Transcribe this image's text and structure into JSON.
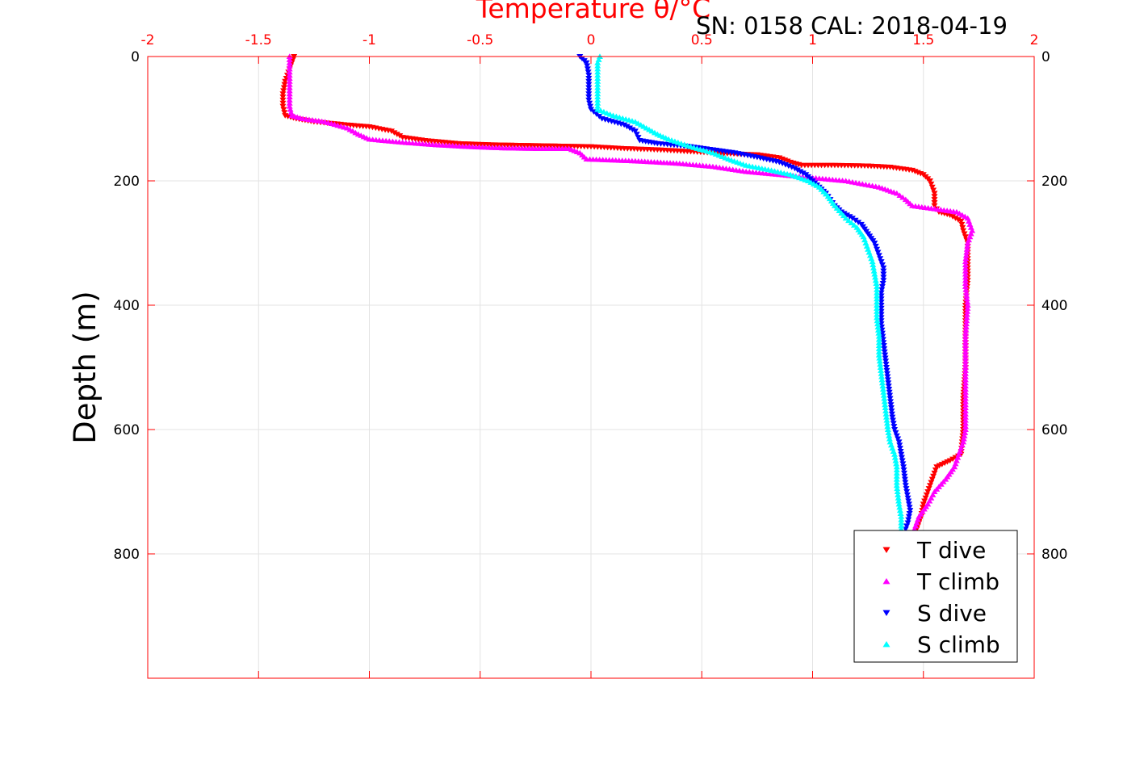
{
  "chart_data": {
    "type": "scatter",
    "title": "Temperature θ/°C",
    "subtitle": "SN: 0158  CAL: 2018-04-19",
    "xlabel": "Temperature θ/°C",
    "ylabel": "Depth (m)",
    "xlim": [
      -2,
      2
    ],
    "ylim": [
      1000,
      0
    ],
    "x_ticks": [
      "-2",
      "-1.5",
      "-1",
      "-0.5",
      "0",
      "0.5",
      "1",
      "1.5",
      "2"
    ],
    "y_ticks": [
      "0",
      "200",
      "400",
      "600",
      "800"
    ],
    "grid": true,
    "legend_position": "bottom-right",
    "series": [
      {
        "name": "T dive",
        "color": "#ff0000",
        "marker": "triangle-down",
        "points": [
          [
            -1.34,
            0
          ],
          [
            -1.36,
            20
          ],
          [
            -1.38,
            40
          ],
          [
            -1.39,
            60
          ],
          [
            -1.39,
            80
          ],
          [
            -1.38,
            95
          ],
          [
            -1.33,
            100
          ],
          [
            -1.25,
            105
          ],
          [
            -1.1,
            110
          ],
          [
            -1.0,
            113
          ],
          [
            -0.9,
            120
          ],
          [
            -0.85,
            130
          ],
          [
            -0.75,
            135
          ],
          [
            -0.6,
            140
          ],
          [
            -0.45,
            142
          ],
          [
            -0.3,
            143
          ],
          [
            -0.15,
            144
          ],
          [
            0.0,
            145
          ],
          [
            0.15,
            148
          ],
          [
            0.3,
            150
          ],
          [
            0.45,
            153
          ],
          [
            0.6,
            156
          ],
          [
            0.75,
            158
          ],
          [
            0.85,
            163
          ],
          [
            0.9,
            170
          ],
          [
            0.95,
            175
          ],
          [
            1.1,
            175
          ],
          [
            1.25,
            176
          ],
          [
            1.35,
            178
          ],
          [
            1.45,
            183
          ],
          [
            1.5,
            190
          ],
          [
            1.53,
            200
          ],
          [
            1.55,
            220
          ],
          [
            1.55,
            240
          ],
          [
            1.57,
            250
          ],
          [
            1.62,
            255
          ],
          [
            1.67,
            265
          ],
          [
            1.68,
            280
          ],
          [
            1.7,
            300
          ],
          [
            1.7,
            330
          ],
          [
            1.7,
            360
          ],
          [
            1.69,
            400
          ],
          [
            1.69,
            450
          ],
          [
            1.69,
            500
          ],
          [
            1.68,
            550
          ],
          [
            1.68,
            600
          ],
          [
            1.67,
            640
          ],
          [
            1.62,
            650
          ],
          [
            1.56,
            660
          ],
          [
            1.54,
            680
          ],
          [
            1.52,
            700
          ],
          [
            1.5,
            720
          ],
          [
            1.49,
            740
          ],
          [
            1.47,
            760
          ]
        ]
      },
      {
        "name": "T climb",
        "color": "#ff00ff",
        "marker": "triangle-up",
        "points": [
          [
            -1.36,
            0
          ],
          [
            -1.36,
            20
          ],
          [
            -1.36,
            40
          ],
          [
            -1.36,
            60
          ],
          [
            -1.36,
            80
          ],
          [
            -1.35,
            95
          ],
          [
            -1.3,
            100
          ],
          [
            -1.2,
            105
          ],
          [
            -1.1,
            115
          ],
          [
            -1.05,
            125
          ],
          [
            -1.0,
            133
          ],
          [
            -0.85,
            138
          ],
          [
            -0.7,
            142
          ],
          [
            -0.55,
            145
          ],
          [
            -0.4,
            147
          ],
          [
            -0.25,
            148
          ],
          [
            -0.1,
            148
          ],
          [
            -0.05,
            155
          ],
          [
            -0.02,
            165
          ],
          [
            0.2,
            168
          ],
          [
            0.4,
            172
          ],
          [
            0.55,
            177
          ],
          [
            0.7,
            185
          ],
          [
            0.85,
            190
          ],
          [
            1.0,
            195
          ],
          [
            1.15,
            200
          ],
          [
            1.3,
            210
          ],
          [
            1.38,
            220
          ],
          [
            1.42,
            230
          ],
          [
            1.45,
            240
          ],
          [
            1.55,
            245
          ],
          [
            1.65,
            250
          ],
          [
            1.7,
            260
          ],
          [
            1.72,
            280
          ],
          [
            1.7,
            300
          ],
          [
            1.69,
            330
          ],
          [
            1.69,
            370
          ],
          [
            1.7,
            400
          ],
          [
            1.69,
            450
          ],
          [
            1.69,
            500
          ],
          [
            1.69,
            550
          ],
          [
            1.69,
            600
          ],
          [
            1.68,
            620
          ],
          [
            1.66,
            640
          ],
          [
            1.64,
            660
          ],
          [
            1.6,
            680
          ],
          [
            1.55,
            700
          ],
          [
            1.52,
            720
          ],
          [
            1.48,
            740
          ],
          [
            1.46,
            760
          ]
        ]
      },
      {
        "name": "S dive",
        "color": "#0000ff",
        "marker": "triangle-down",
        "points": [
          [
            -0.05,
            0
          ],
          [
            -0.02,
            10
          ],
          [
            -0.01,
            30
          ],
          [
            -0.01,
            50
          ],
          [
            -0.01,
            70
          ],
          [
            0.0,
            85
          ],
          [
            0.05,
            100
          ],
          [
            0.15,
            110
          ],
          [
            0.2,
            120
          ],
          [
            0.22,
            135
          ],
          [
            0.3,
            140
          ],
          [
            0.45,
            145
          ],
          [
            0.55,
            150
          ],
          [
            0.65,
            155
          ],
          [
            0.75,
            162
          ],
          [
            0.85,
            170
          ],
          [
            0.92,
            180
          ],
          [
            0.97,
            190
          ],
          [
            1.0,
            200
          ],
          [
            1.03,
            210
          ],
          [
            1.06,
            220
          ],
          [
            1.08,
            230
          ],
          [
            1.1,
            240
          ],
          [
            1.13,
            250
          ],
          [
            1.18,
            260
          ],
          [
            1.22,
            270
          ],
          [
            1.25,
            285
          ],
          [
            1.28,
            300
          ],
          [
            1.3,
            320
          ],
          [
            1.32,
            340
          ],
          [
            1.32,
            360
          ],
          [
            1.31,
            380
          ],
          [
            1.31,
            400
          ],
          [
            1.31,
            430
          ],
          [
            1.32,
            460
          ],
          [
            1.33,
            490
          ],
          [
            1.34,
            520
          ],
          [
            1.35,
            550
          ],
          [
            1.36,
            580
          ],
          [
            1.37,
            600
          ],
          [
            1.39,
            620
          ],
          [
            1.4,
            640
          ],
          [
            1.41,
            660
          ],
          [
            1.42,
            690
          ],
          [
            1.43,
            710
          ],
          [
            1.44,
            730
          ],
          [
            1.43,
            750
          ],
          [
            1.42,
            760
          ]
        ]
      },
      {
        "name": "S climb",
        "color": "#00ffff",
        "marker": "triangle-up",
        "points": [
          [
            0.04,
            0
          ],
          [
            0.03,
            10
          ],
          [
            0.03,
            30
          ],
          [
            0.03,
            50
          ],
          [
            0.03,
            70
          ],
          [
            0.03,
            85
          ],
          [
            0.1,
            95
          ],
          [
            0.2,
            105
          ],
          [
            0.25,
            115
          ],
          [
            0.3,
            125
          ],
          [
            0.35,
            133
          ],
          [
            0.45,
            145
          ],
          [
            0.55,
            155
          ],
          [
            0.62,
            165
          ],
          [
            0.7,
            175
          ],
          [
            0.8,
            182
          ],
          [
            0.9,
            190
          ],
          [
            0.98,
            200
          ],
          [
            1.03,
            210
          ],
          [
            1.07,
            225
          ],
          [
            1.1,
            240
          ],
          [
            1.15,
            260
          ],
          [
            1.2,
            275
          ],
          [
            1.23,
            290
          ],
          [
            1.25,
            310
          ],
          [
            1.27,
            330
          ],
          [
            1.28,
            350
          ],
          [
            1.29,
            370
          ],
          [
            1.29,
            390
          ],
          [
            1.29,
            420
          ],
          [
            1.3,
            450
          ],
          [
            1.3,
            480
          ],
          [
            1.31,
            510
          ],
          [
            1.32,
            540
          ],
          [
            1.33,
            570
          ],
          [
            1.34,
            600
          ],
          [
            1.35,
            620
          ],
          [
            1.37,
            640
          ],
          [
            1.38,
            660
          ],
          [
            1.38,
            690
          ],
          [
            1.39,
            720
          ],
          [
            1.4,
            740
          ],
          [
            1.4,
            760
          ]
        ]
      }
    ]
  }
}
